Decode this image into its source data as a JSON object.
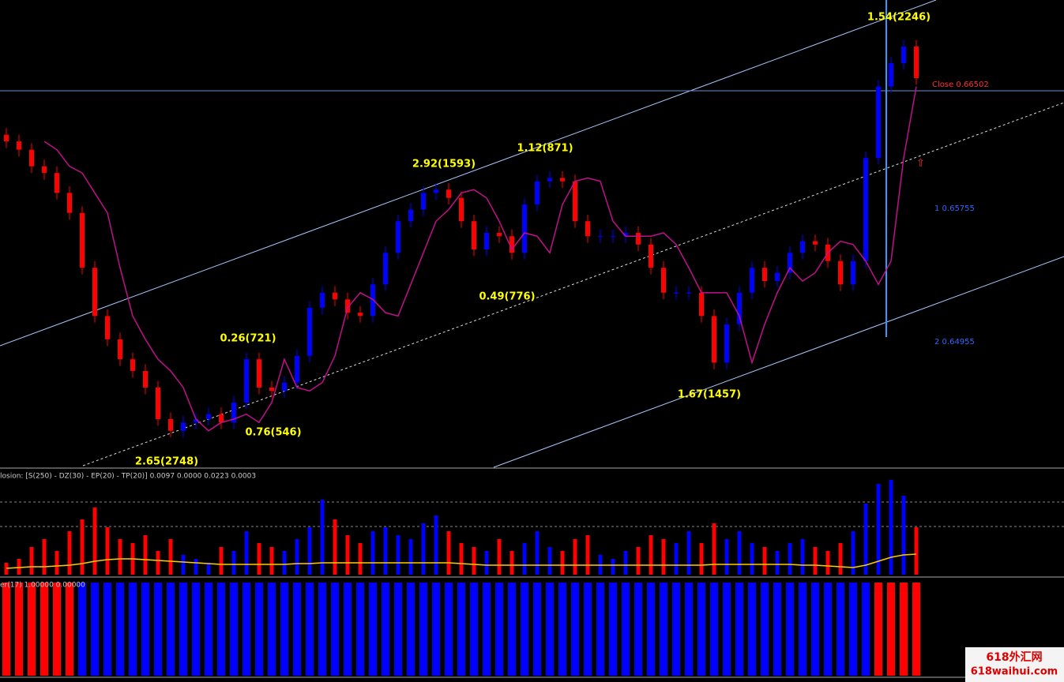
{
  "chart_data": [
    {
      "type": "candlestick",
      "ylim": [
        0.6421,
        0.6701
      ],
      "up_color": "#0000ff",
      "down_color": "#ff0000",
      "open": [
        0.662,
        0.6616,
        0.6611,
        0.6601,
        0.6597,
        0.6585,
        0.6573,
        0.654,
        0.6511,
        0.6497,
        0.6485,
        0.6478,
        0.6468,
        0.6449,
        0.6442,
        0.6447,
        0.6449,
        0.6452,
        0.6447,
        0.6459,
        0.6485,
        0.6468,
        0.6466,
        0.6471,
        0.6487,
        0.6516,
        0.6525,
        0.6521,
        0.6513,
        0.6511,
        0.653,
        0.6549,
        0.6568,
        0.6575,
        0.6585,
        0.6587,
        0.6582,
        0.6568,
        0.6551,
        0.6561,
        0.6559,
        0.6549,
        0.6578,
        0.6592,
        0.6594,
        0.6592,
        0.6568,
        0.6559,
        0.6559,
        0.6559,
        0.6561,
        0.6554,
        0.654,
        0.6525,
        0.6525,
        0.6525,
        0.6511,
        0.6483,
        0.6506,
        0.6525,
        0.654,
        0.6532,
        0.6537,
        0.6549,
        0.6556,
        0.6554,
        0.6544,
        0.653,
        0.6544,
        0.6606,
        0.6649,
        0.6663,
        0.6673
      ],
      "high": [
        0.6624,
        0.662,
        0.6615,
        0.6605,
        0.6601,
        0.6589,
        0.6577,
        0.6544,
        0.6515,
        0.6501,
        0.6489,
        0.6482,
        0.6472,
        0.6453,
        0.6451,
        0.6453,
        0.6456,
        0.6456,
        0.6463,
        0.6489,
        0.6489,
        0.6472,
        0.6475,
        0.6491,
        0.652,
        0.6529,
        0.6529,
        0.6525,
        0.6517,
        0.6534,
        0.6553,
        0.6572,
        0.6579,
        0.6589,
        0.6591,
        0.6591,
        0.6586,
        0.6572,
        0.6565,
        0.6565,
        0.6563,
        0.6582,
        0.6596,
        0.6598,
        0.6598,
        0.6596,
        0.6572,
        0.6563,
        0.6563,
        0.6565,
        0.6565,
        0.6558,
        0.6544,
        0.6529,
        0.6529,
        0.6529,
        0.6515,
        0.651,
        0.6529,
        0.6544,
        0.6544,
        0.6541,
        0.6553,
        0.656,
        0.656,
        0.6558,
        0.6548,
        0.6548,
        0.661,
        0.6653,
        0.6667,
        0.6677,
        0.6677
      ],
      "low": [
        0.6612,
        0.6607,
        0.6597,
        0.6593,
        0.6581,
        0.6569,
        0.6536,
        0.6507,
        0.6493,
        0.6481,
        0.6474,
        0.6464,
        0.6445,
        0.6438,
        0.6438,
        0.6443,
        0.6445,
        0.6443,
        0.6443,
        0.6455,
        0.6464,
        0.6462,
        0.6462,
        0.6467,
        0.6483,
        0.6512,
        0.6517,
        0.6509,
        0.6507,
        0.6507,
        0.6526,
        0.6545,
        0.6564,
        0.6571,
        0.6581,
        0.6578,
        0.6564,
        0.6547,
        0.6547,
        0.6555,
        0.6545,
        0.6545,
        0.6574,
        0.6588,
        0.6588,
        0.6564,
        0.6555,
        0.6555,
        0.6555,
        0.6555,
        0.655,
        0.6536,
        0.6521,
        0.6521,
        0.6521,
        0.6507,
        0.6479,
        0.6479,
        0.6502,
        0.6521,
        0.6528,
        0.6528,
        0.6533,
        0.6545,
        0.655,
        0.654,
        0.6526,
        0.6526,
        0.654,
        0.6602,
        0.6645,
        0.6659,
        0.665
      ],
      "close": [
        0.6616,
        0.6611,
        0.6601,
        0.6597,
        0.6585,
        0.6573,
        0.654,
        0.6511,
        0.6497,
        0.6485,
        0.6478,
        0.6468,
        0.6449,
        0.6442,
        0.6447,
        0.6449,
        0.6452,
        0.6447,
        0.6459,
        0.6485,
        0.6468,
        0.6466,
        0.6471,
        0.6487,
        0.6516,
        0.6525,
        0.6521,
        0.6513,
        0.6511,
        0.653,
        0.6549,
        0.6568,
        0.6575,
        0.6585,
        0.6587,
        0.6582,
        0.6568,
        0.6551,
        0.6561,
        0.6559,
        0.6549,
        0.6578,
        0.6592,
        0.6594,
        0.6592,
        0.6568,
        0.6559,
        0.6559,
        0.6559,
        0.6561,
        0.6554,
        0.654,
        0.6525,
        0.6525,
        0.6525,
        0.6511,
        0.6483,
        0.6506,
        0.6525,
        0.654,
        0.6532,
        0.6537,
        0.6549,
        0.6556,
        0.6554,
        0.6544,
        0.653,
        0.6544,
        0.6606,
        0.6649,
        0.6663,
        0.6673,
        0.6654
      ],
      "ma": {
        "color": "#c0108a",
        "values": [
          null,
          null,
          null,
          0.6616,
          0.6611,
          0.6601,
          0.6597,
          0.6585,
          0.6573,
          0.654,
          0.6511,
          0.6497,
          0.6485,
          0.6478,
          0.6468,
          0.6449,
          0.6442,
          0.6447,
          0.6449,
          0.6452,
          0.6447,
          0.6459,
          0.6485,
          0.6468,
          0.6466,
          0.6471,
          0.6487,
          0.6516,
          0.6525,
          0.6521,
          0.6513,
          0.6511,
          0.653,
          0.6549,
          0.6568,
          0.6575,
          0.6585,
          0.6587,
          0.6582,
          0.6568,
          0.6551,
          0.6561,
          0.6559,
          0.6549,
          0.6578,
          0.6592,
          0.6594,
          0.6592,
          0.6568,
          0.6559,
          0.6559,
          0.6559,
          0.6561,
          0.6554,
          0.654,
          0.6525,
          0.6525,
          0.6525,
          0.6511,
          0.6483,
          0.6506,
          0.6525,
          0.654,
          0.6532,
          0.6537,
          0.6549,
          0.6556,
          0.6554,
          0.6544,
          0.653,
          0.6544,
          0.6606,
          0.6649
        ]
      },
      "annotations": [
        "1.54(2246)",
        "1.12(871)",
        "2.92(1593)",
        "0.49(776)",
        "0.26(721)",
        "0.76(546)",
        "1.67(1457)",
        "2.65(2748)"
      ],
      "level_labels": [
        "Close 0.66502",
        "1 0.65755",
        "2 0.64955"
      ]
    },
    {
      "type": "bar",
      "title": "losion: [S(250) - DZ(30) - EP(20) - TP(20)] 0.0097 0.0000 0.0223 0.0003",
      "ylim": [
        0,
        0.013
      ],
      "up_color": "#0000ff",
      "down_color": "#ff0000",
      "values": [
        0.0015,
        0.002,
        0.0035,
        0.0045,
        0.003,
        0.0055,
        0.007,
        0.0085,
        0.006,
        0.0045,
        0.004,
        0.005,
        0.003,
        0.0045,
        0.0025,
        0.002,
        0.0015,
        0.0035,
        0.003,
        0.0055,
        0.004,
        0.0035,
        0.003,
        0.0045,
        0.006,
        0.0095,
        0.007,
        0.005,
        0.004,
        0.0055,
        0.006,
        0.005,
        0.0045,
        0.0065,
        0.0075,
        0.0055,
        0.004,
        0.0035,
        0.003,
        0.0045,
        0.003,
        0.004,
        0.0055,
        0.0035,
        0.003,
        0.0045,
        0.005,
        0.0025,
        0.002,
        0.003,
        0.0035,
        0.005,
        0.0045,
        0.004,
        0.0055,
        0.004,
        0.0065,
        0.0045,
        0.0055,
        0.004,
        0.0035,
        0.003,
        0.004,
        0.0045,
        0.0035,
        0.003,
        0.004,
        0.0055,
        0.009,
        0.0115,
        0.012,
        0.01,
        0.006
      ],
      "signal": {
        "color": "#ffcc00",
        "values": [
          0.0008,
          0.0009,
          0.001,
          0.001,
          0.0011,
          0.0012,
          0.0014,
          0.0017,
          0.0019,
          0.002,
          0.002,
          0.0019,
          0.0018,
          0.0017,
          0.0016,
          0.0015,
          0.0014,
          0.0013,
          0.0013,
          0.0013,
          0.0013,
          0.0013,
          0.0013,
          0.0014,
          0.0014,
          0.0015,
          0.0015,
          0.0015,
          0.0015,
          0.0015,
          0.0015,
          0.0015,
          0.0015,
          0.0015,
          0.0015,
          0.0015,
          0.0014,
          0.0013,
          0.0012,
          0.0012,
          0.0012,
          0.0012,
          0.0012,
          0.0012,
          0.0012,
          0.0012,
          0.0012,
          0.0012,
          0.0012,
          0.0012,
          0.0012,
          0.0012,
          0.0012,
          0.0012,
          0.0012,
          0.0012,
          0.0013,
          0.0013,
          0.0013,
          0.0013,
          0.0013,
          0.0013,
          0.0013,
          0.0012,
          0.0012,
          0.0011,
          0.001,
          0.0009,
          0.0012,
          0.0017,
          0.0022,
          0.0025,
          0.0026
        ]
      }
    },
    {
      "type": "bar",
      "title": "er(17) 1.00000 0.00000",
      "ylim": [
        0,
        1
      ],
      "values": [
        1,
        1,
        1,
        1,
        1,
        1,
        1,
        1,
        1,
        1,
        1,
        1,
        1,
        1,
        1,
        1,
        1,
        1,
        1,
        1,
        1,
        1,
        1,
        1,
        1,
        1,
        1,
        1,
        1,
        1,
        1,
        1,
        1,
        1,
        1,
        1,
        1,
        1,
        1,
        1,
        1,
        1,
        1,
        1,
        1,
        1,
        1,
        1,
        1,
        1,
        1,
        1,
        1,
        1,
        1,
        1,
        1,
        1,
        1,
        1,
        1,
        1,
        1,
        1,
        1,
        1,
        1,
        1,
        1,
        1,
        1,
        1,
        1
      ],
      "colors": [
        "#ff0000",
        "#ff0000",
        "#ff0000",
        "#ff0000",
        "#ff0000",
        "#ff0000",
        "#0000ff",
        "#0000ff",
        "#0000ff",
        "#0000ff",
        "#0000ff",
        "#0000ff",
        "#0000ff",
        "#0000ff",
        "#0000ff",
        "#0000ff",
        "#0000ff",
        "#0000ff",
        "#0000ff",
        "#0000ff",
        "#0000ff",
        "#0000ff",
        "#0000ff",
        "#0000ff",
        "#0000ff",
        "#0000ff",
        "#0000ff",
        "#0000ff",
        "#0000ff",
        "#0000ff",
        "#0000ff",
        "#0000ff",
        "#0000ff",
        "#0000ff",
        "#0000ff",
        "#0000ff",
        "#0000ff",
        "#0000ff",
        "#0000ff",
        "#0000ff",
        "#0000ff",
        "#0000ff",
        "#0000ff",
        "#0000ff",
        "#0000ff",
        "#0000ff",
        "#0000ff",
        "#0000ff",
        "#0000ff",
        "#0000ff",
        "#0000ff",
        "#0000ff",
        "#0000ff",
        "#0000ff",
        "#0000ff",
        "#0000ff",
        "#0000ff",
        "#0000ff",
        "#0000ff",
        "#0000ff",
        "#0000ff",
        "#0000ff",
        "#0000ff",
        "#0000ff",
        "#0000ff",
        "#0000ff",
        "#0000ff",
        "#0000ff",
        "#0000ff",
        "#ff0000",
        "#ff0000",
        "#ff0000",
        "#ff0000"
      ]
    }
  ],
  "watermark": {
    "line1": "618外汇网",
    "line2": "618waihui.com"
  }
}
